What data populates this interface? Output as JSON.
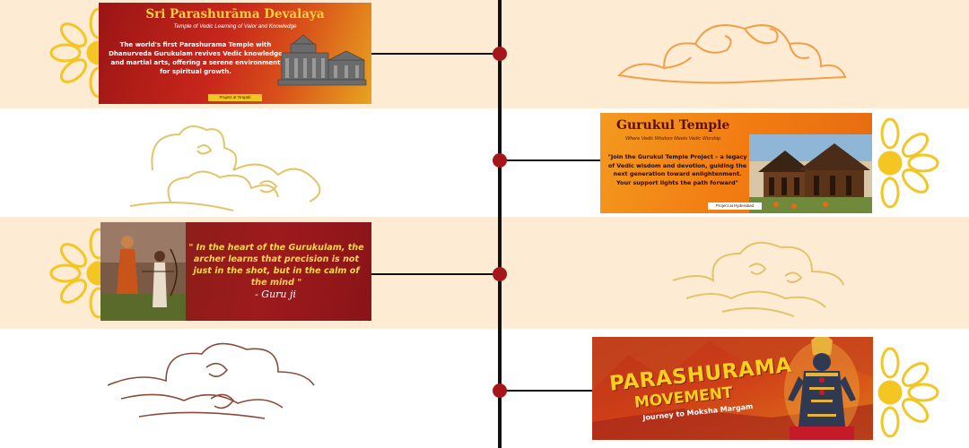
{
  "colors": {
    "cream_band": "#fdebd3",
    "timeline": "#111111",
    "dot": "#a5161b",
    "flower": "#f3c623",
    "cloud_orange": "#f0a048",
    "cloud_gold": "#e3c46a",
    "cloud_brown": "#8a4a3a"
  },
  "cards": [
    {
      "title": "Sri Parashurāma Devalaya",
      "subtitle": "Temple of Vedic Learning of Valor and Knowledge",
      "body": "The world's first Parashurama Temple with Dhanurveda Gurukulam revives Vedic knowledge and martial arts, offering a serene environment for spiritual growth.",
      "tag": "Project at Tirupati",
      "image_icon": "temple-illustration-icon"
    },
    {
      "title": "Gurukul Temple",
      "subtitle": "Where Vedic Wisdom Meets Vedic Worship",
      "body": "\"Join the Gurukul Temple Project – a legacy of Vedic wisdom and devotion, guiding the next generation toward enlightenment. Your support lights the path forward\"",
      "tag": "Project at Hyderabad",
      "image_icon": "wooden-temple-photo-icon"
    },
    {
      "quote": "\" In the heart of the Gurukulam, the archer learns that precision is not just in the shot, but in the calm of the mind \"",
      "author": "- Guru ji",
      "image_icon": "archer-photo-icon"
    },
    {
      "title_line1": "PARASHURAMA",
      "title_line2": "MOVEMENT",
      "subtitle": "Journey to Moksha Margam",
      "image_icon": "deity-idol-icon"
    }
  ]
}
